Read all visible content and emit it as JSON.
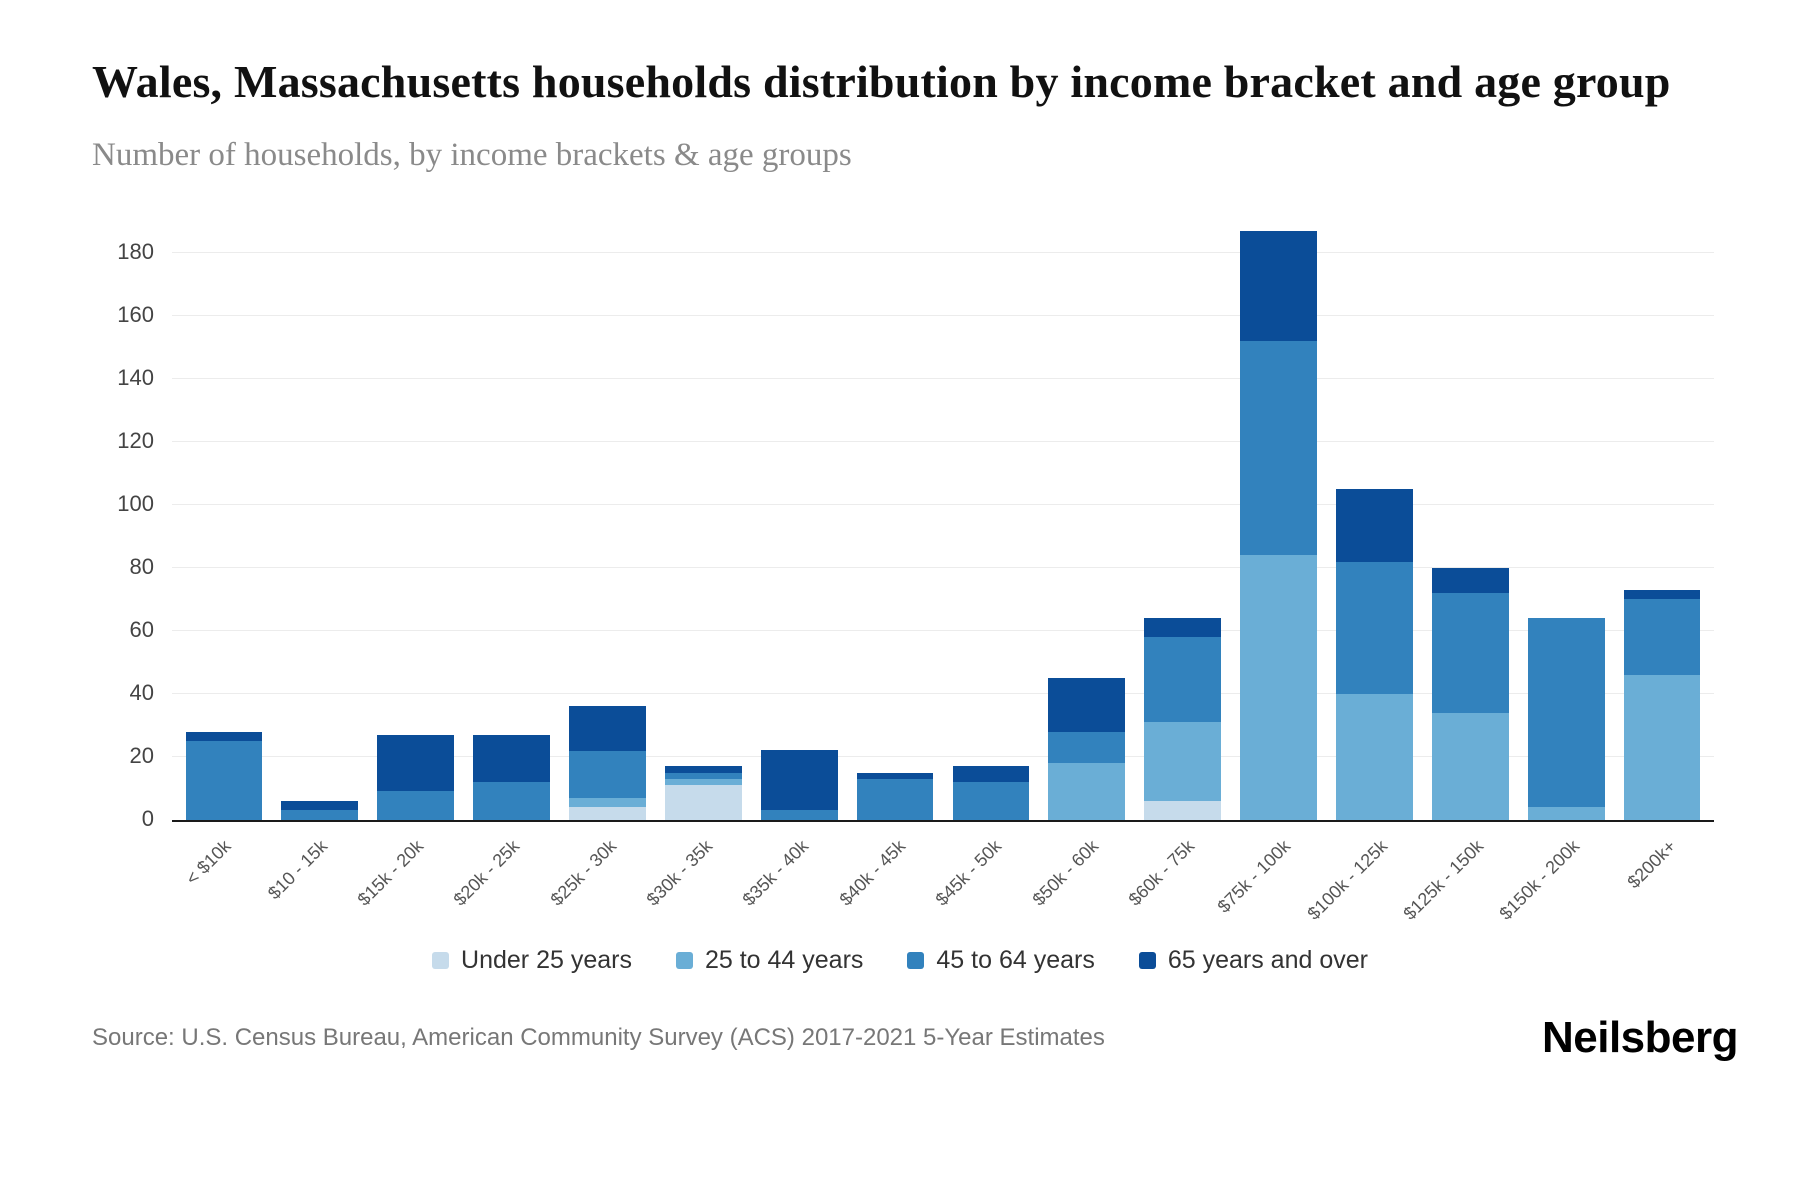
{
  "header": {
    "title": "Wales, Massachusetts households distribution by income bracket and age group",
    "subtitle": "Number of households, by income brackets & age groups"
  },
  "footer": {
    "source": "Source: U.S. Census Bureau, American Community Survey (ACS) 2017-2021 5-Year Estimates",
    "brand": "Neilsberg"
  },
  "chart_data": {
    "type": "bar",
    "stacked": true,
    "title": "Wales, Massachusetts households distribution by income bracket and age group",
    "xlabel": "",
    "ylabel": "Number of households",
    "categories": [
      "< $10k",
      "$10 - 15k",
      "$15k - 20k",
      "$20k - 25k",
      "$25k - 30k",
      "$30k - 35k",
      "$35k - 40k",
      "$40k - 45k",
      "$45k - 50k",
      "$50k - 60k",
      "$60k - 75k",
      "$75k - 100k",
      "$100k - 125k",
      "$125k - 150k",
      "$150k - 200k",
      "$200k+"
    ],
    "series": [
      {
        "name": "Under 25 years",
        "color": "#c6dbeb",
        "values": [
          0,
          0,
          0,
          0,
          4,
          11,
          0,
          0,
          0,
          0,
          6,
          0,
          0,
          0,
          0,
          0
        ]
      },
      {
        "name": "25 to 44 years",
        "color": "#6aaed6",
        "values": [
          0,
          0,
          0,
          0,
          3,
          2,
          0,
          0,
          0,
          18,
          25,
          84,
          40,
          34,
          4,
          46
        ]
      },
      {
        "name": "45 to 64 years",
        "color": "#3282bd",
        "values": [
          25,
          3,
          9,
          12,
          15,
          2,
          3,
          13,
          12,
          10,
          27,
          68,
          42,
          38,
          60,
          24
        ]
      },
      {
        "name": "65 years and over",
        "color": "#0b4d98",
        "values": [
          3,
          3,
          18,
          15,
          14,
          2,
          19,
          2,
          5,
          17,
          6,
          35,
          23,
          8,
          0,
          3
        ]
      }
    ],
    "ylim": [
      0,
      190
    ],
    "yticks": [
      0,
      20,
      40,
      60,
      80,
      100,
      120,
      140,
      160,
      180
    ],
    "grid": true,
    "legend_position": "bottom"
  }
}
